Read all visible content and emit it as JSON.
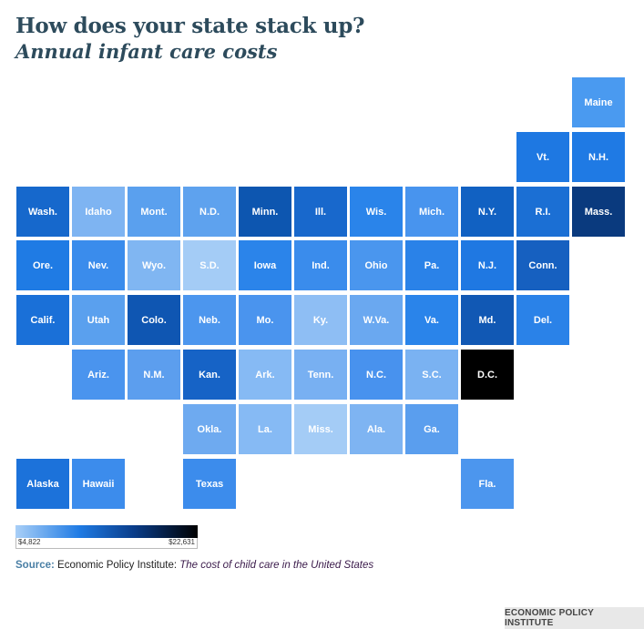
{
  "header": {
    "title": "How does your state stack up?",
    "subtitle": "Annual infant care costs"
  },
  "map": {
    "tiles": [
      {
        "label": "Maine",
        "row": 0,
        "col": 10,
        "color": "#4a9af0"
      },
      {
        "label": "Vt.",
        "row": 1,
        "col": 9,
        "color": "#1e78e2"
      },
      {
        "label": "N.H.",
        "row": 1,
        "col": 10,
        "color": "#1f7ae4"
      },
      {
        "label": "Wash.",
        "row": 2,
        "col": 0,
        "color": "#1668cc"
      },
      {
        "label": "Idaho",
        "row": 2,
        "col": 1,
        "color": "#7eb4f2"
      },
      {
        "label": "Mont.",
        "row": 2,
        "col": 2,
        "color": "#5aa0ee"
      },
      {
        "label": "N.D.",
        "row": 2,
        "col": 3,
        "color": "#5ea2ee"
      },
      {
        "label": "Minn.",
        "row": 2,
        "col": 4,
        "color": "#0d56b0"
      },
      {
        "label": "Ill.",
        "row": 2,
        "col": 5,
        "color": "#1868cc"
      },
      {
        "label": "Wis.",
        "row": 2,
        "col": 6,
        "color": "#2a84ea"
      },
      {
        "label": "Mich.",
        "row": 2,
        "col": 7,
        "color": "#4894ee"
      },
      {
        "label": "N.Y.",
        "row": 2,
        "col": 8,
        "color": "#1161c2"
      },
      {
        "label": "R.I.",
        "row": 2,
        "col": 9,
        "color": "#1b6fd4"
      },
      {
        "label": "Mass.",
        "row": 2,
        "col": 10,
        "color": "#0a3a7e"
      },
      {
        "label": "Ore.",
        "row": 3,
        "col": 0,
        "color": "#1f7be4"
      },
      {
        "label": "Nev.",
        "row": 3,
        "col": 1,
        "color": "#3a8cec"
      },
      {
        "label": "Wyo.",
        "row": 3,
        "col": 2,
        "color": "#80b6f2"
      },
      {
        "label": "S.D.",
        "row": 3,
        "col": 3,
        "color": "#a4ccf6"
      },
      {
        "label": "Iowa",
        "row": 3,
        "col": 4,
        "color": "#2b84ea"
      },
      {
        "label": "Ind.",
        "row": 3,
        "col": 5,
        "color": "#3a8cec"
      },
      {
        "label": "Ohio",
        "row": 3,
        "col": 6,
        "color": "#4a96ee"
      },
      {
        "label": "Pa.",
        "row": 3,
        "col": 7,
        "color": "#2a82e8"
      },
      {
        "label": "N.J.",
        "row": 3,
        "col": 8,
        "color": "#1f78e2"
      },
      {
        "label": "Conn.",
        "row": 3,
        "col": 9,
        "color": "#1660c0"
      },
      {
        "label": "Calif.",
        "row": 4,
        "col": 0,
        "color": "#1a70d8"
      },
      {
        "label": "Utah",
        "row": 4,
        "col": 1,
        "color": "#5aa0ee"
      },
      {
        "label": "Colo.",
        "row": 4,
        "col": 2,
        "color": "#0f56b2"
      },
      {
        "label": "Neb.",
        "row": 4,
        "col": 3,
        "color": "#4c96ee"
      },
      {
        "label": "Mo.",
        "row": 4,
        "col": 4,
        "color": "#4a94ee"
      },
      {
        "label": "Ky.",
        "row": 4,
        "col": 5,
        "color": "#8ebef4"
      },
      {
        "label": "W.Va.",
        "row": 4,
        "col": 6,
        "color": "#6aa8f0"
      },
      {
        "label": "Va.",
        "row": 4,
        "col": 7,
        "color": "#2a84ea"
      },
      {
        "label": "Md.",
        "row": 4,
        "col": 8,
        "color": "#1158b4"
      },
      {
        "label": "Del.",
        "row": 4,
        "col": 9,
        "color": "#2a82e8"
      },
      {
        "label": "Ariz.",
        "row": 5,
        "col": 1,
        "color": "#4a94ee"
      },
      {
        "label": "N.M.",
        "row": 5,
        "col": 2,
        "color": "#5c9eee"
      },
      {
        "label": "Kan.",
        "row": 5,
        "col": 3,
        "color": "#1663c6"
      },
      {
        "label": "Ark.",
        "row": 5,
        "col": 4,
        "color": "#86baf4"
      },
      {
        "label": "Tenn.",
        "row": 5,
        "col": 5,
        "color": "#78b0f2"
      },
      {
        "label": "N.C.",
        "row": 5,
        "col": 6,
        "color": "#4892ee"
      },
      {
        "label": "S.C.",
        "row": 5,
        "col": 7,
        "color": "#7ab2f2"
      },
      {
        "label": "D.C.",
        "row": 5,
        "col": 8,
        "color": "#000000"
      },
      {
        "label": "Okla.",
        "row": 6,
        "col": 3,
        "color": "#6eaaf0"
      },
      {
        "label": "La.",
        "row": 6,
        "col": 4,
        "color": "#86baf4"
      },
      {
        "label": "Miss.",
        "row": 6,
        "col": 5,
        "color": "#a4ccf6"
      },
      {
        "label": "Ala.",
        "row": 6,
        "col": 6,
        "color": "#7eb4f2"
      },
      {
        "label": "Ga.",
        "row": 6,
        "col": 7,
        "color": "#5a9eee"
      },
      {
        "label": "Alaska",
        "row": 7,
        "col": 0,
        "color": "#1c72da"
      },
      {
        "label": "Hawaii",
        "row": 7,
        "col": 1,
        "color": "#3c8cec"
      },
      {
        "label": "Texas",
        "row": 7,
        "col": 3,
        "color": "#3c8cec"
      },
      {
        "label": "Fla.",
        "row": 7,
        "col": 8,
        "color": "#4c96ee"
      }
    ]
  },
  "legend": {
    "min_label": "$4,822",
    "max_label": "$22,631",
    "colors": [
      "#a9cff7",
      "#1f7be4",
      "#0a3d8a",
      "#000000"
    ]
  },
  "source": {
    "label": "Source:",
    "org": "Economic Policy Institute:",
    "title": "The cost of child care in the United States"
  },
  "footer": {
    "badge": "ECONOMIC POLICY INSTITUTE"
  }
}
